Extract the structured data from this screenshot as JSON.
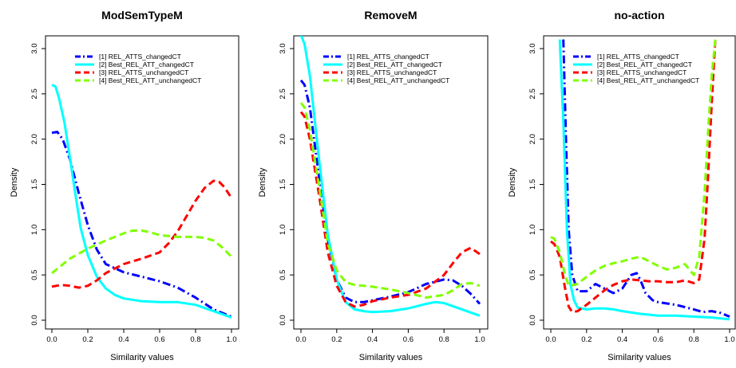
{
  "chart_data": [
    {
      "type": "line",
      "title": "ModSemTypeM",
      "xlabel": "Similarity values",
      "ylabel": "Density",
      "xlim": [
        0,
        1
      ],
      "ylim": [
        0,
        3
      ],
      "xticks": [
        "0.0",
        "0.2",
        "0.4",
        "0.6",
        "0.8",
        "1.0"
      ],
      "yticks": [
        "0.0",
        "0.5",
        "1.0",
        "1.5",
        "2.0",
        "2.5",
        "3.0"
      ],
      "legend_position": "top-right",
      "series": [
        {
          "name": "[1] REL_ATTS_changedCT",
          "color": "#0000ff",
          "dash": "dotdash",
          "x": [
            0,
            0.03,
            0.06,
            0.1,
            0.15,
            0.2,
            0.25,
            0.3,
            0.4,
            0.5,
            0.6,
            0.7,
            0.8,
            0.9,
            1.0
          ],
          "y": [
            2.07,
            2.08,
            2.0,
            1.78,
            1.4,
            1.05,
            0.78,
            0.62,
            0.53,
            0.48,
            0.43,
            0.36,
            0.25,
            0.12,
            0.04
          ]
        },
        {
          "name": "[2] Best_REL_ATT_changedCT",
          "color": "#00ffff",
          "dash": "solid",
          "x": [
            0,
            0.02,
            0.04,
            0.07,
            0.1,
            0.13,
            0.16,
            0.2,
            0.25,
            0.3,
            0.35,
            0.4,
            0.5,
            0.6,
            0.7,
            0.8,
            0.9,
            1.0
          ],
          "y": [
            2.6,
            2.58,
            2.45,
            2.18,
            1.8,
            1.4,
            1.02,
            0.72,
            0.48,
            0.35,
            0.28,
            0.24,
            0.21,
            0.2,
            0.2,
            0.17,
            0.1,
            0.03
          ]
        },
        {
          "name": "[3] REL_ATTS_unchangedCT",
          "color": "#ff0000",
          "dash": "dashed",
          "x": [
            0,
            0.05,
            0.1,
            0.15,
            0.2,
            0.25,
            0.3,
            0.4,
            0.5,
            0.6,
            0.65,
            0.7,
            0.75,
            0.8,
            0.85,
            0.9,
            0.93,
            0.96,
            1.0
          ],
          "y": [
            0.37,
            0.39,
            0.38,
            0.36,
            0.38,
            0.44,
            0.52,
            0.62,
            0.68,
            0.75,
            0.85,
            0.98,
            1.15,
            1.32,
            1.46,
            1.54,
            1.53,
            1.47,
            1.35
          ]
        },
        {
          "name": "[4] Best_REL_ATT_unchangedCT",
          "color": "#80ff00",
          "dash": "dashed",
          "x": [
            0,
            0.05,
            0.1,
            0.2,
            0.3,
            0.4,
            0.45,
            0.5,
            0.55,
            0.6,
            0.7,
            0.8,
            0.85,
            0.9,
            0.95,
            1.0
          ],
          "y": [
            0.52,
            0.6,
            0.68,
            0.79,
            0.88,
            0.96,
            0.99,
            0.99,
            0.97,
            0.94,
            0.92,
            0.92,
            0.91,
            0.88,
            0.8,
            0.7
          ]
        }
      ]
    },
    {
      "type": "line",
      "title": "RemoveM",
      "xlabel": "Similarity values",
      "ylabel": "Density",
      "xlim": [
        0,
        1
      ],
      "ylim": [
        0,
        3
      ],
      "xticks": [
        "0.0",
        "0.2",
        "0.4",
        "0.6",
        "0.8",
        "1.0"
      ],
      "yticks": [
        "0.0",
        "0.5",
        "1.0",
        "1.5",
        "2.0",
        "2.5",
        "3.0"
      ],
      "legend_position": "top-right",
      "series": [
        {
          "name": "[1] REL_ATTS_changedCT",
          "color": "#0000ff",
          "dash": "dotdash",
          "x": [
            0,
            0.02,
            0.05,
            0.1,
            0.15,
            0.2,
            0.25,
            0.3,
            0.35,
            0.4,
            0.5,
            0.6,
            0.7,
            0.8,
            0.85,
            0.9,
            0.95,
            1.0
          ],
          "y": [
            2.65,
            2.6,
            2.35,
            1.6,
            0.9,
            0.45,
            0.25,
            0.2,
            0.2,
            0.22,
            0.26,
            0.31,
            0.4,
            0.45,
            0.44,
            0.38,
            0.29,
            0.18
          ]
        },
        {
          "name": "[2] Best_REL_ATT_changedCT",
          "color": "#00ffff",
          "dash": "solid",
          "x": [
            0,
            0.02,
            0.05,
            0.1,
            0.15,
            0.2,
            0.25,
            0.3,
            0.35,
            0.4,
            0.5,
            0.6,
            0.7,
            0.75,
            0.8,
            0.9,
            1.0
          ],
          "y": [
            3.15,
            3.05,
            2.7,
            1.8,
            0.95,
            0.45,
            0.2,
            0.12,
            0.1,
            0.09,
            0.1,
            0.13,
            0.18,
            0.2,
            0.19,
            0.12,
            0.05
          ]
        },
        {
          "name": "[3] REL_ATTS_unchangedCT",
          "color": "#ff0000",
          "dash": "dashed",
          "x": [
            0,
            0.02,
            0.05,
            0.1,
            0.15,
            0.2,
            0.25,
            0.3,
            0.35,
            0.4,
            0.5,
            0.6,
            0.7,
            0.8,
            0.85,
            0.9,
            0.95,
            1.0
          ],
          "y": [
            2.3,
            2.25,
            2.0,
            1.4,
            0.75,
            0.38,
            0.2,
            0.15,
            0.17,
            0.21,
            0.25,
            0.28,
            0.35,
            0.5,
            0.63,
            0.75,
            0.8,
            0.73
          ]
        },
        {
          "name": "[4] Best_REL_ATT_unchangedCT",
          "color": "#80ff00",
          "dash": "dashed",
          "x": [
            0,
            0.02,
            0.05,
            0.1,
            0.15,
            0.2,
            0.25,
            0.3,
            0.35,
            0.4,
            0.5,
            0.6,
            0.7,
            0.8,
            0.85,
            0.9,
            0.95,
            1.0
          ],
          "y": [
            2.4,
            2.35,
            2.1,
            1.5,
            0.85,
            0.55,
            0.42,
            0.39,
            0.38,
            0.37,
            0.34,
            0.3,
            0.25,
            0.28,
            0.33,
            0.4,
            0.41,
            0.38
          ]
        }
      ]
    },
    {
      "type": "line",
      "title": "no-action",
      "xlabel": "Similarity values",
      "ylabel": "Density",
      "xlim": [
        0,
        1
      ],
      "ylim": [
        0,
        3
      ],
      "xticks": [
        "0.0",
        "0.2",
        "0.4",
        "0.6",
        "0.8",
        "1.0"
      ],
      "yticks": [
        "0.0",
        "0.5",
        "1.0",
        "1.5",
        "2.0",
        "2.5",
        "3.0"
      ],
      "legend_position": "top-right",
      "series": [
        {
          "name": "[1] REL_ATTS_changedCT",
          "color": "#0000ff",
          "dash": "dotdash",
          "x": [
            0.07,
            0.085,
            0.1,
            0.12,
            0.15,
            0.2,
            0.25,
            0.3,
            0.35,
            0.4,
            0.45,
            0.48,
            0.5,
            0.53,
            0.57,
            0.6,
            0.7,
            0.8,
            0.85,
            0.9,
            0.95,
            1.0
          ],
          "y": [
            3.1,
            2.0,
            1.0,
            0.5,
            0.32,
            0.32,
            0.4,
            0.35,
            0.3,
            0.35,
            0.5,
            0.52,
            0.45,
            0.3,
            0.22,
            0.2,
            0.17,
            0.12,
            0.09,
            0.1,
            0.08,
            0.04
          ]
        },
        {
          "name": "[2] Best_REL_ATT_changedCT",
          "color": "#00ffff",
          "dash": "solid",
          "x": [
            0.05,
            0.07,
            0.09,
            0.11,
            0.13,
            0.15,
            0.2,
            0.25,
            0.3,
            0.35,
            0.4,
            0.5,
            0.6,
            0.7,
            0.8,
            0.9,
            1.0
          ],
          "y": [
            3.1,
            2.2,
            1.0,
            0.4,
            0.22,
            0.14,
            0.12,
            0.13,
            0.13,
            0.12,
            0.1,
            0.07,
            0.05,
            0.05,
            0.04,
            0.03,
            0.01
          ]
        },
        {
          "name": "[3] REL_ATTS_unchangedCT",
          "color": "#ff0000",
          "dash": "dashed",
          "x": [
            0,
            0.02,
            0.05,
            0.08,
            0.1,
            0.12,
            0.15,
            0.2,
            0.25,
            0.3,
            0.35,
            0.4,
            0.45,
            0.5,
            0.55,
            0.6,
            0.65,
            0.7,
            0.75,
            0.8,
            0.83,
            0.86,
            0.88,
            0.9,
            0.92
          ],
          "y": [
            0.87,
            0.84,
            0.7,
            0.35,
            0.15,
            0.09,
            0.1,
            0.17,
            0.25,
            0.33,
            0.39,
            0.43,
            0.45,
            0.44,
            0.43,
            0.43,
            0.42,
            0.42,
            0.44,
            0.41,
            0.45,
            0.9,
            1.6,
            2.4,
            3.1
          ]
        },
        {
          "name": "[4] Best_REL_ATT_unchangedCT",
          "color": "#80ff00",
          "dash": "dashed",
          "x": [
            0,
            0.02,
            0.05,
            0.08,
            0.1,
            0.15,
            0.2,
            0.25,
            0.3,
            0.35,
            0.4,
            0.45,
            0.5,
            0.55,
            0.6,
            0.65,
            0.7,
            0.75,
            0.8,
            0.83,
            0.86,
            0.88,
            0.9,
            0.92
          ],
          "y": [
            0.92,
            0.9,
            0.75,
            0.5,
            0.38,
            0.4,
            0.48,
            0.55,
            0.6,
            0.63,
            0.65,
            0.68,
            0.7,
            0.65,
            0.6,
            0.56,
            0.58,
            0.62,
            0.5,
            0.7,
            1.4,
            2.1,
            2.7,
            3.1
          ]
        }
      ]
    }
  ]
}
